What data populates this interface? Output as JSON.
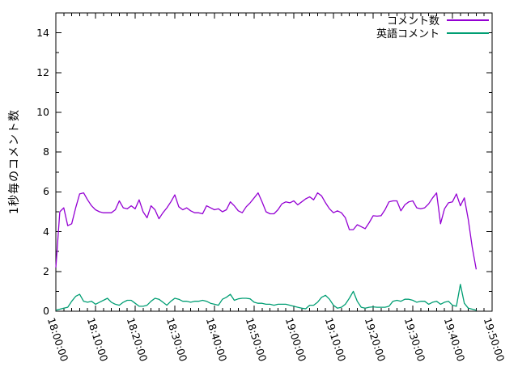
{
  "chart_data": {
    "type": "line",
    "title": "",
    "xlabel": "",
    "ylabel": "1秒毎のコメント数",
    "grid": false,
    "legend_position": "top-right-inside",
    "background_color": "#ffffff",
    "border_color": "#000000",
    "ylim": [
      0,
      15
    ],
    "y_ticks": [
      0,
      2,
      4,
      6,
      8,
      10,
      12,
      14
    ],
    "y_minor_tick_step": 1,
    "x_range_minutes": [
      0,
      110
    ],
    "x_major_tick_step_minutes": 10,
    "x_minor_tick_step_minutes": 2,
    "x_tick_labels": [
      "18:00:00",
      "18:10:00",
      "18:20:00",
      "18:30:00",
      "18:40:00",
      "18:50:00",
      "19:00:00",
      "19:10:00",
      "19:20:00",
      "19:30:00",
      "19:40:00",
      "19:50:00"
    ],
    "x_start_minute": 0,
    "x_step_minutes": 1,
    "series": [
      {
        "name": "コメント数",
        "color": "#9400d3",
        "values": [
          2.2,
          5.0,
          5.2,
          4.3,
          4.4,
          5.2,
          5.9,
          5.95,
          5.6,
          5.3,
          5.1,
          5.0,
          4.95,
          4.95,
          4.95,
          5.1,
          5.55,
          5.2,
          5.15,
          5.3,
          5.15,
          5.6,
          5.0,
          4.7,
          5.3,
          5.1,
          4.65,
          4.95,
          5.2,
          5.5,
          5.85,
          5.25,
          5.1,
          5.2,
          5.05,
          4.95,
          4.95,
          4.9,
          5.3,
          5.2,
          5.1,
          5.15,
          5.0,
          5.1,
          5.5,
          5.3,
          5.05,
          4.95,
          5.25,
          5.45,
          5.7,
          5.95,
          5.5,
          5.0,
          4.9,
          4.9,
          5.1,
          5.4,
          5.5,
          5.45,
          5.55,
          5.35,
          5.5,
          5.65,
          5.75,
          5.6,
          5.95,
          5.8,
          5.45,
          5.15,
          4.95,
          5.05,
          4.95,
          4.7,
          4.1,
          4.1,
          4.35,
          4.25,
          4.15,
          4.45,
          4.8,
          4.78,
          4.8,
          5.1,
          5.5,
          5.55,
          5.55,
          5.05,
          5.35,
          5.5,
          5.55,
          5.2,
          5.15,
          5.2,
          5.4,
          5.7,
          5.95,
          4.4,
          5.15,
          5.45,
          5.5,
          5.9,
          5.3,
          5.7,
          4.6,
          3.2,
          2.1
        ]
      },
      {
        "name": "英語コメント",
        "color": "#009e73",
        "values": [
          0.05,
          0.1,
          0.15,
          0.2,
          0.5,
          0.75,
          0.85,
          0.5,
          0.45,
          0.5,
          0.35,
          0.45,
          0.55,
          0.65,
          0.45,
          0.35,
          0.3,
          0.45,
          0.55,
          0.55,
          0.4,
          0.25,
          0.25,
          0.3,
          0.5,
          0.65,
          0.6,
          0.45,
          0.3,
          0.5,
          0.65,
          0.6,
          0.5,
          0.5,
          0.45,
          0.5,
          0.5,
          0.55,
          0.5,
          0.4,
          0.35,
          0.3,
          0.6,
          0.7,
          0.85,
          0.55,
          0.62,
          0.65,
          0.65,
          0.62,
          0.45,
          0.4,
          0.4,
          0.35,
          0.35,
          0.3,
          0.35,
          0.35,
          0.35,
          0.3,
          0.25,
          0.2,
          0.15,
          0.12,
          0.3,
          0.3,
          0.45,
          0.7,
          0.8,
          0.6,
          0.3,
          0.15,
          0.2,
          0.35,
          0.65,
          1.0,
          0.5,
          0.2,
          0.15,
          0.2,
          0.22,
          0.2,
          0.2,
          0.2,
          0.25,
          0.5,
          0.55,
          0.5,
          0.6,
          0.6,
          0.55,
          0.45,
          0.5,
          0.5,
          0.35,
          0.45,
          0.5,
          0.35,
          0.45,
          0.5,
          0.3,
          0.25,
          1.35,
          0.4,
          0.15,
          0.1,
          0.05
        ]
      }
    ]
  }
}
